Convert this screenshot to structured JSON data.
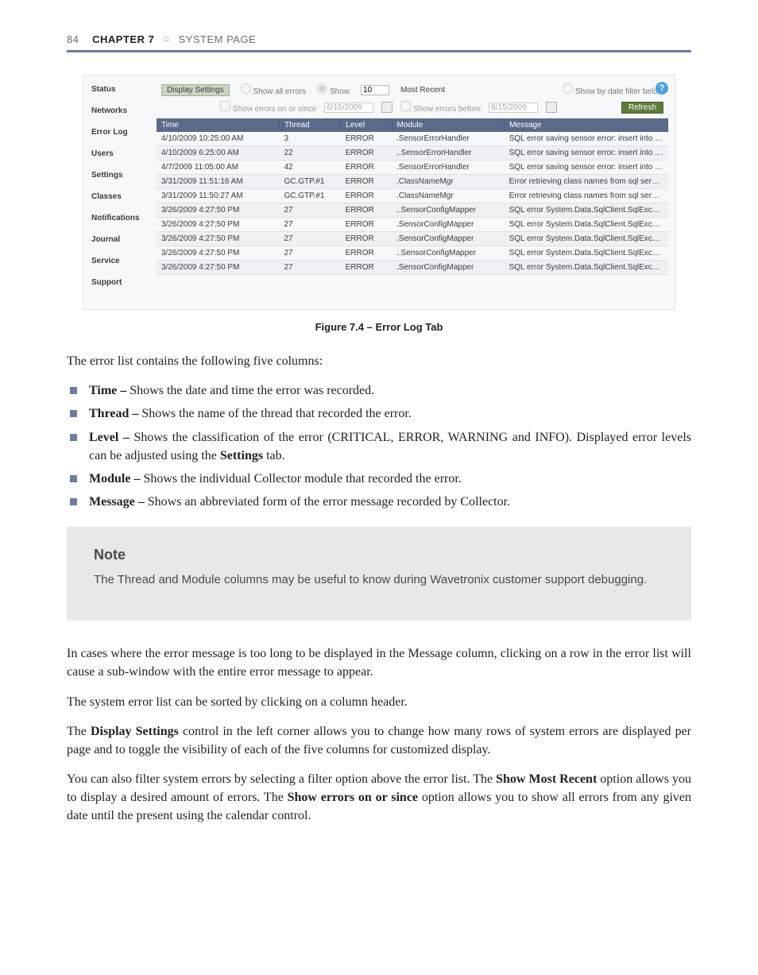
{
  "header": {
    "page_number": "84",
    "chapter": "CHAPTER 7",
    "square": "□",
    "section": "SYSTEM PAGE"
  },
  "figure": {
    "caption": "Figure 7.4 – Error Log Tab"
  },
  "shot": {
    "nav_items": [
      "Status",
      "Networks",
      "Error Log",
      "Users",
      "Settings",
      "Classes",
      "Notifications",
      "Journal",
      "Service",
      "Support"
    ],
    "display_settings_label": "Display Settings",
    "radio_all": "Show all errors",
    "radio_show": "Show",
    "show_count": "10",
    "most_recent": "Most Recent",
    "radio_datefilter": "Show by date filter below",
    "show_on_since": "Show errors on or since",
    "date1": "6/15/2009",
    "show_before": "Show errors before",
    "date2": "6/15/2009",
    "refresh": "Refresh",
    "help_glyph": "?",
    "columns": [
      "Time",
      "Thread",
      "Level",
      "Module",
      "Message"
    ],
    "rows": [
      [
        "4/10/2009 10:25:00 AM",
        "3",
        "ERROR",
        ".SensorErrorHandler",
        "SQL error saving sensor error: insert into s..."
      ],
      [
        "4/10/2009 6:25:00 AM",
        "22",
        "ERROR",
        "..SensorErrorHandler",
        "SQL error saving sensor error: insert into s..."
      ],
      [
        "4/7/2009 11:05:00 AM",
        "42",
        "ERROR",
        ".SensorErrorHandler",
        "SQL error saving sensor error: insert into s..."
      ],
      [
        "3/31/2009 11:51:16 AM",
        "GC.GTP.#1",
        "ERROR",
        ".ClassNameMgr",
        "Error retrieving class names from sql server...."
      ],
      [
        "3/31/2009 11:50:27 AM",
        "GC.GTP.#1",
        "ERROR",
        ".ClassNameMgr",
        "Error retrieving class names from sql server...."
      ],
      [
        "3/26/2009 4:27:50 PM",
        "27",
        "ERROR",
        "..SensorConfigMapper",
        "SQL error System.Data.SqlClient.SqlExcepti..."
      ],
      [
        "3/26/2009 4:27:50 PM",
        "27",
        "ERROR",
        ".SensorConfigMapper",
        "SQL error System.Data.SqlClient.SqlExcepti..."
      ],
      [
        "3/26/2009 4:27:50 PM",
        "27",
        "ERROR",
        ".SensorConfigMapper",
        "SQL error System.Data.SqlClient.SqlExcepti..."
      ],
      [
        "3/26/2009 4:27:50 PM",
        "27",
        "ERROR",
        "..SensorConfigMapper",
        "SQL error System.Data.SqlClient.SqlExcepti..."
      ],
      [
        "3/26/2009 4:27:50 PM",
        "27",
        "ERROR",
        ".SensorConfigMapper",
        "SQL error System.Data.SqlClient.SqlExcepti..."
      ]
    ]
  },
  "intro": "The error list contains the following five columns:",
  "bullets": [
    {
      "term": "Time –",
      "desc": " Shows the date and time the error was recorded."
    },
    {
      "term": "Thread –",
      "desc": " Shows the name of the thread that recorded the error."
    },
    {
      "term": "Level –",
      "desc": " Shows the classification of the error (CRITICAL, ERROR, WARNING and INFO). Displayed error levels can be adjusted using the ",
      "tail_bold": "Settings",
      "tail": " tab."
    },
    {
      "term": "Module –",
      "desc": " Shows the individual Collector module that recorded the error."
    },
    {
      "term": "Message –",
      "desc": " Shows an abbreviated form of the error message recorded by Collector."
    }
  ],
  "note": {
    "title": "Note",
    "body": "The Thread and Module columns may be useful to know during Wavetronix customer support debugging."
  },
  "para1": "In cases where the error message is too long to be displayed in the Message column, clicking on a row in the error list will cause a sub-window with the entire error message to appear.",
  "para2": "The system error list can be sorted by clicking on a column header.",
  "para3_pre": "The ",
  "para3_b1": "Display Settings",
  "para3_mid": " control in the left corner allows you to change how many rows of system errors are displayed per page and to toggle the visibility of each of the five columns for customized display.",
  "para4_pre": "You can also filter system errors by selecting a filter option above the error list.  The ",
  "para4_b1": "Show Most Recent",
  "para4_mid1": " option allows you to display a desired amount of errors. The ",
  "para4_b2": "Show errors on or since",
  "para4_mid2": " option allows you to show all errors from any given date until the present using the calendar control."
}
